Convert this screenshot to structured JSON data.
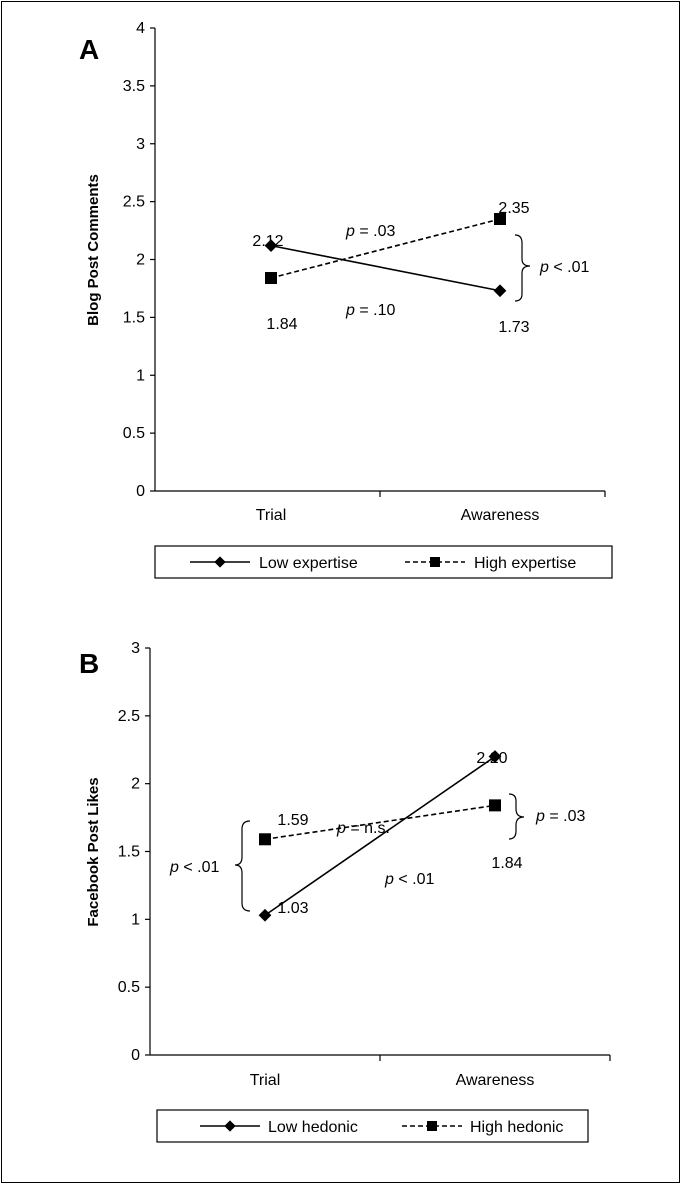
{
  "chart_data": [
    {
      "panel_label": "A",
      "type": "line",
      "categories": [
        "Trial",
        "Awareness"
      ],
      "ylabel": "Blog Post Comments",
      "ylim": [
        0,
        4
      ],
      "yticks": [
        "0",
        "0.5",
        "1",
        "1.5",
        "2",
        "2.5",
        "3",
        "3.5",
        "4"
      ],
      "series": [
        {
          "name": "Low expertise",
          "values": [
            2.12,
            1.73
          ],
          "value_labels": [
            "2.12",
            "1.73"
          ],
          "line_style": "solid",
          "marker": "diamond"
        },
        {
          "name": "High expertise",
          "values": [
            1.84,
            2.35
          ],
          "value_labels": [
            "1.84",
            "2.35"
          ],
          "line_style": "dashed",
          "marker": "square"
        }
      ],
      "annotations": {
        "slope_top": {
          "p": "p",
          "rest": " = .03"
        },
        "slope_bottom": {
          "p": "p",
          "rest": " = .10"
        },
        "bracket": {
          "p": "p",
          "rest": " < .01"
        }
      },
      "grid": false,
      "legend_position": "bottom"
    },
    {
      "panel_label": "B",
      "type": "line",
      "categories": [
        "Trial",
        "Awareness"
      ],
      "ylabel": "Facebook Post Likes",
      "ylim": [
        0,
        3
      ],
      "yticks": [
        "0",
        "0.5",
        "1",
        "1.5",
        "2",
        "2.5",
        "3"
      ],
      "series": [
        {
          "name": "Low hedonic",
          "values": [
            1.03,
            2.2
          ],
          "value_labels": [
            "1.03",
            "2.20"
          ],
          "line_style": "solid",
          "marker": "diamond"
        },
        {
          "name": "High hedonic",
          "values": [
            1.59,
            1.84
          ],
          "value_labels": [
            "1.59",
            "1.84"
          ],
          "line_style": "dashed",
          "marker": "square"
        }
      ],
      "annotations": {
        "slope_top": {
          "p": "p",
          "rest": " = n.s."
        },
        "slope_bottom": {
          "p": "p",
          "rest": " < .01"
        },
        "bracket_left": {
          "p": "p",
          "rest": " < .01"
        },
        "bracket_right": {
          "p": "p",
          "rest": " = .03"
        }
      },
      "grid": false,
      "legend_position": "bottom"
    }
  ]
}
